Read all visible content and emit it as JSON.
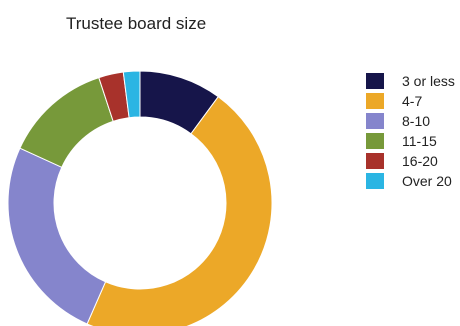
{
  "chart_data": {
    "type": "pie",
    "title": "Trustee board size",
    "donut": true,
    "legend_position": "right",
    "categories": [
      "3 or less",
      "4-7",
      "8-10",
      "11-15",
      "16-20",
      "Over 20"
    ],
    "values": [
      10,
      46,
      25,
      13,
      3,
      2
    ],
    "unit": "%",
    "colors": [
      "#16154a",
      "#eca828",
      "#8585cc",
      "#77993a",
      "#a8322b",
      "#2bb5e3"
    ]
  }
}
